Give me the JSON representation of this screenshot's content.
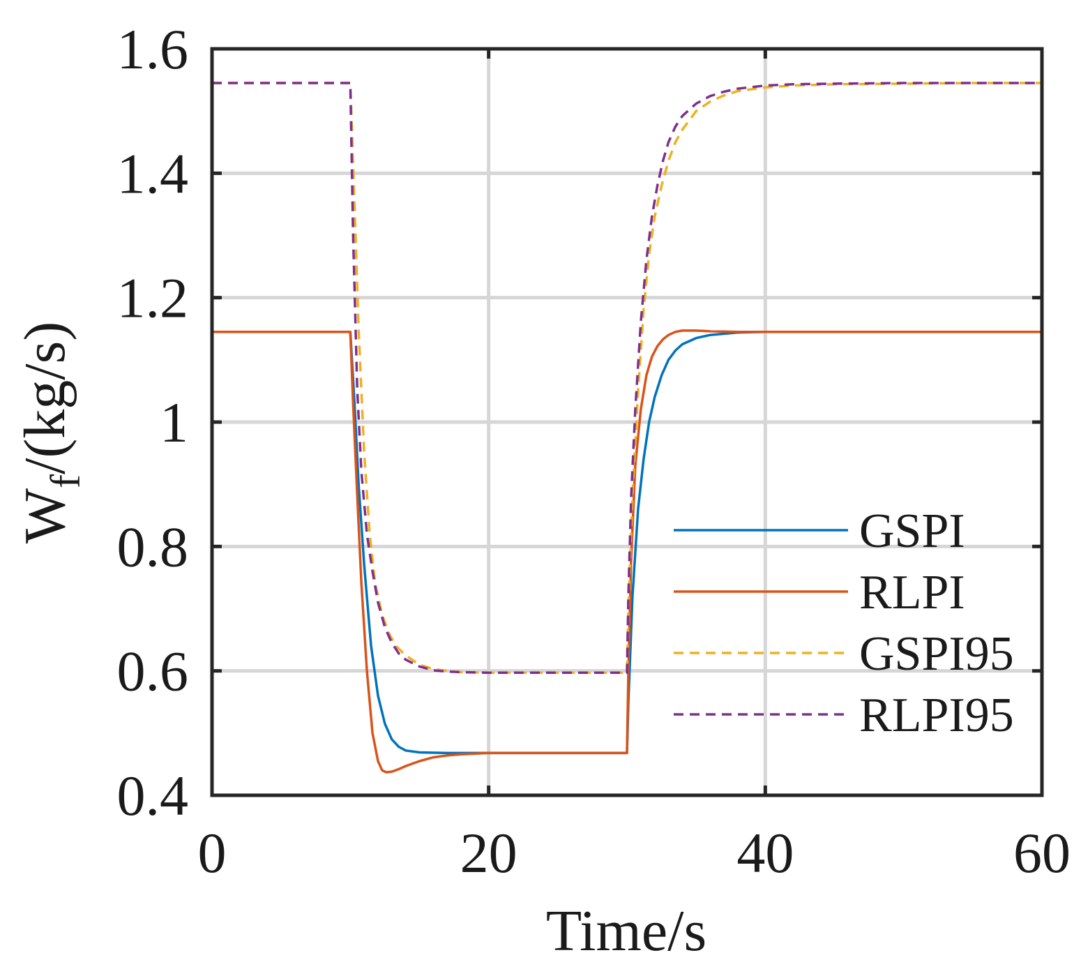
{
  "chart_data": {
    "type": "line",
    "title": "",
    "xlabel": "Time/s",
    "ylabel_main": "W",
    "ylabel_sub": "f",
    "ylabel_rest": "/(kg/s)",
    "xlim": [
      0,
      60
    ],
    "ylim": [
      0.4,
      1.6
    ],
    "xticks": [
      0,
      20,
      40,
      60
    ],
    "xtick_labels": [
      "0",
      "20",
      "40",
      "60"
    ],
    "yticks": [
      0.4,
      0.6,
      0.8,
      1.0,
      1.2,
      1.4,
      1.6
    ],
    "ytick_labels": [
      "0.4",
      "0.6",
      "0.8",
      "1",
      "1.2",
      "1.4",
      "1.6"
    ],
    "grid": true,
    "legend_position": "bottom-right",
    "series": [
      {
        "name": "GSPI",
        "color": "#0072BD",
        "style": "solid",
        "x": [
          0,
          10,
          10.3,
          10.6,
          11,
          11.5,
          12,
          12.5,
          13,
          13.5,
          14,
          15,
          17,
          20,
          25,
          30,
          30.1,
          30.4,
          30.8,
          31.2,
          31.6,
          32,
          32.5,
          33,
          33.5,
          34,
          35,
          36,
          38,
          40,
          45,
          50,
          60
        ],
        "y": [
          1.145,
          1.145,
          1.03,
          0.9,
          0.77,
          0.64,
          0.56,
          0.515,
          0.49,
          0.478,
          0.472,
          0.469,
          0.468,
          0.468,
          0.468,
          0.468,
          0.55,
          0.72,
          0.86,
          0.94,
          1.0,
          1.04,
          1.075,
          1.1,
          1.115,
          1.125,
          1.135,
          1.14,
          1.144,
          1.145,
          1.145,
          1.145,
          1.145
        ]
      },
      {
        "name": "RLPI",
        "color": "#D95319",
        "style": "solid",
        "x": [
          0,
          10,
          10.2,
          10.5,
          10.8,
          11.2,
          11.6,
          12,
          12.3,
          12.6,
          13,
          13.5,
          14,
          15,
          16,
          17,
          18,
          20,
          25,
          30,
          30.1,
          30.3,
          30.6,
          31,
          31.4,
          31.8,
          32.2,
          32.6,
          33,
          33.5,
          34,
          35,
          36,
          38,
          40,
          50,
          60
        ],
        "y": [
          1.145,
          1.145,
          1.03,
          0.88,
          0.74,
          0.6,
          0.5,
          0.455,
          0.44,
          0.437,
          0.438,
          0.442,
          0.447,
          0.455,
          0.461,
          0.464,
          0.466,
          0.468,
          0.468,
          0.468,
          0.6,
          0.78,
          0.93,
          1.02,
          1.075,
          1.105,
          1.122,
          1.133,
          1.14,
          1.145,
          1.147,
          1.147,
          1.146,
          1.145,
          1.145,
          1.145,
          1.145
        ]
      },
      {
        "name": "GSPI95",
        "color": "#EDB120",
        "style": "dashed",
        "x": [
          0,
          10,
          10.3,
          10.6,
          11,
          11.4,
          11.8,
          12.3,
          12.8,
          13.3,
          14,
          15,
          16,
          17,
          18,
          20,
          25,
          30,
          30.1,
          30.4,
          30.8,
          31.2,
          31.6,
          32,
          32.5,
          33,
          33.5,
          34,
          35,
          36,
          37,
          38,
          40,
          42,
          45,
          50,
          55,
          60
        ],
        "y": [
          1.545,
          1.545,
          1.35,
          1.15,
          0.95,
          0.82,
          0.74,
          0.69,
          0.66,
          0.64,
          0.625,
          0.61,
          0.603,
          0.6,
          0.598,
          0.597,
          0.597,
          0.597,
          0.7,
          0.88,
          1.05,
          1.18,
          1.27,
          1.33,
          1.38,
          1.42,
          1.45,
          1.47,
          1.5,
          1.515,
          1.525,
          1.532,
          1.538,
          1.541,
          1.543,
          1.544,
          1.545,
          1.545
        ]
      },
      {
        "name": "RLPI95",
        "color": "#7E2F8E",
        "style": "dashed",
        "x": [
          0,
          10,
          10.2,
          10.5,
          10.8,
          11.2,
          11.6,
          12,
          12.5,
          13,
          13.5,
          14,
          15,
          16,
          17,
          18,
          20,
          25,
          30,
          30.1,
          30.3,
          30.6,
          31,
          31.4,
          31.8,
          32.2,
          32.6,
          33,
          33.5,
          34,
          35,
          36,
          37,
          38,
          40,
          42,
          45,
          50,
          55,
          60
        ],
        "y": [
          1.545,
          1.545,
          1.3,
          1.05,
          0.92,
          0.82,
          0.76,
          0.71,
          0.67,
          0.645,
          0.628,
          0.618,
          0.607,
          0.601,
          0.599,
          0.598,
          0.597,
          0.597,
          0.597,
          0.72,
          0.88,
          1.02,
          1.16,
          1.26,
          1.33,
          1.38,
          1.42,
          1.45,
          1.475,
          1.492,
          1.512,
          1.524,
          1.531,
          1.536,
          1.541,
          1.543,
          1.544,
          1.545,
          1.545,
          1.545
        ]
      }
    ]
  }
}
